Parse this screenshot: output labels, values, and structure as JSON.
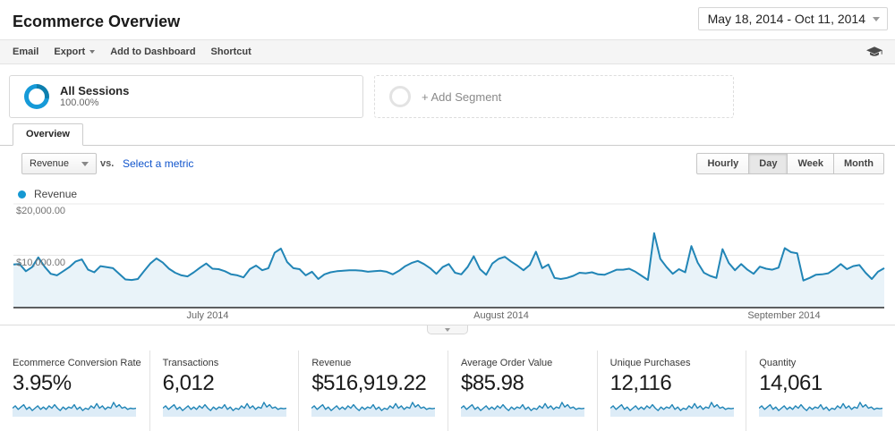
{
  "header": {
    "title": "Ecommerce Overview",
    "date_range": "May 18, 2014 - Oct 11, 2014"
  },
  "toolbar": {
    "email": "Email",
    "export": "Export",
    "add_to_dashboard": "Add to Dashboard",
    "shortcut": "Shortcut"
  },
  "segments": {
    "all_sessions_name": "All Sessions",
    "all_sessions_percent": "100.00%",
    "add_segment": "+ Add Segment"
  },
  "tabs": {
    "overview": "Overview"
  },
  "controls": {
    "metric_selector_value": "Revenue",
    "vs_label": "vs.",
    "select_metric_label": "Select a metric",
    "granularity": [
      "Hourly",
      "Day",
      "Week",
      "Month"
    ],
    "selected_granularity": "Day"
  },
  "legend": {
    "series_label": "Revenue"
  },
  "chart_data": {
    "type": "area",
    "title": "Revenue by day",
    "series_name": "Revenue",
    "unit": "USD",
    "ylim": [
      0,
      20000
    ],
    "y_tick_labels": {
      "tick_10k": "$10,000.00",
      "tick_20k": "$20,000.00"
    },
    "x_axis_labels": {
      "jul": "July 2014",
      "aug": "August 2014",
      "sep": "September 2014"
    },
    "x_range": [
      "May 18, 2014",
      "Oct 11, 2014"
    ],
    "grid": "horizontal",
    "legend_position": "top-left",
    "values": [
      8200,
      8300,
      6900,
      7700,
      9600,
      7800,
      6400,
      6100,
      6900,
      7700,
      8800,
      9200,
      7200,
      6700,
      7900,
      7700,
      7500,
      6400,
      5300,
      5200,
      5400,
      6900,
      8400,
      9400,
      8600,
      7400,
      6600,
      6100,
      5900,
      6700,
      7600,
      8400,
      7400,
      7300,
      6900,
      6300,
      6100,
      5700,
      7300,
      8000,
      7100,
      7500,
      10500,
      11300,
      8700,
      7500,
      7300,
      6100,
      6800,
      5400,
      6300,
      6700,
      6900,
      7000,
      7100,
      7100,
      7000,
      6800,
      6900,
      7000,
      6800,
      6300,
      7000,
      7900,
      8500,
      8900,
      8300,
      7500,
      6400,
      7700,
      8300,
      6600,
      6300,
      7700,
      9800,
      7300,
      6200,
      8400,
      9300,
      9700,
      8800,
      8000,
      7100,
      8100,
      10700,
      7500,
      8200,
      5600,
      5400,
      5600,
      6000,
      6600,
      6500,
      6700,
      6300,
      6200,
      6700,
      7200,
      7200,
      7400,
      6800,
      6000,
      5200,
      14300,
      9300,
      7700,
      6400,
      7300,
      6700,
      11800,
      8600,
      6600,
      6000,
      5600,
      11200,
      8500,
      7100,
      8300,
      7200,
      6400,
      7800,
      7400,
      7200,
      7600,
      11400,
      10600,
      10400,
      5100,
      5600,
      6200,
      6300,
      6500,
      7300,
      8300,
      7300,
      7900,
      8100,
      6600,
      5400,
      6800,
      7500
    ],
    "card_sparkline_normalized": [
      0.5,
      0.7,
      0.4,
      0.6,
      0.8,
      0.4,
      0.6,
      0.3,
      0.5,
      0.7,
      0.4,
      0.6,
      0.4,
      0.7,
      0.5,
      0.8,
      0.5,
      0.3,
      0.6,
      0.4,
      0.6,
      0.5,
      0.8,
      0.4,
      0.6,
      0.3,
      0.5,
      0.4,
      0.7,
      0.5,
      0.9,
      0.5,
      0.7,
      0.4,
      0.6,
      0.5,
      1.0,
      0.6,
      0.8,
      0.5,
      0.6,
      0.4,
      0.5,
      0.45,
      0.5
    ]
  },
  "cards": [
    {
      "label": "Ecommerce Conversion Rate",
      "value": "3.95%"
    },
    {
      "label": "Transactions",
      "value": "6,012"
    },
    {
      "label": "Revenue",
      "value": "$516,919.22"
    },
    {
      "label": "Average Order Value",
      "value": "$85.98"
    },
    {
      "label": "Unique Purchases",
      "value": "12,116"
    },
    {
      "label": "Quantity",
      "value": "14,061"
    }
  ],
  "colors": {
    "chart_line": "#2185b6",
    "chart_fill": "#e9f3f9",
    "spark_fill": "#ddecf7",
    "accent_blue": "#1598d2",
    "link_blue": "#1155cc",
    "gridline": "#e8e8e8",
    "axis": "#5d5e60"
  }
}
